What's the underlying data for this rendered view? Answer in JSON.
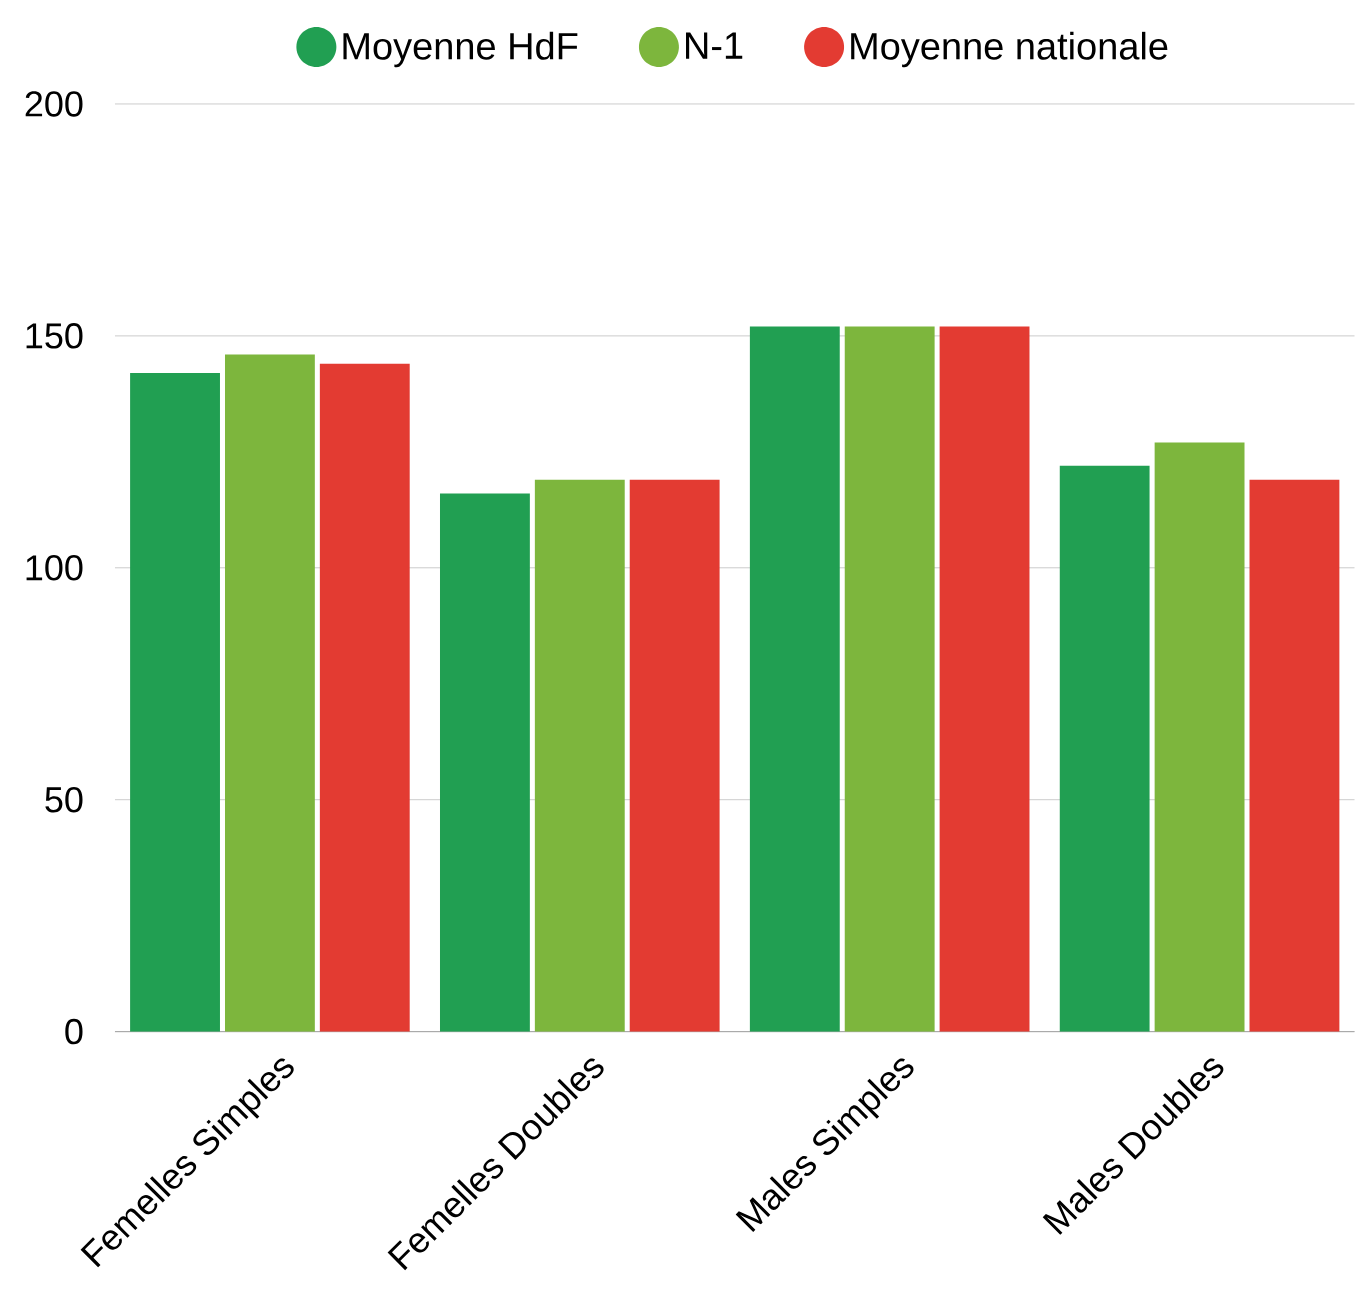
{
  "chart_data": {
    "type": "bar",
    "categories": [
      "Femelles Simples",
      "Femelles Doubles",
      "Males Simples",
      "Males Doubles"
    ],
    "series": [
      {
        "name": "Moyenne HdF",
        "color": "#219f52",
        "values": [
          142,
          116,
          152,
          122
        ]
      },
      {
        "name": "N-1",
        "color": "#7db63d",
        "values": [
          146,
          119,
          152,
          127
        ]
      },
      {
        "name": "Moyenne nationale",
        "color": "#e33b32",
        "values": [
          144,
          119,
          152,
          119
        ]
      }
    ],
    "ylim": [
      0,
      200
    ],
    "yticks": [
      0,
      50,
      100,
      150,
      200
    ],
    "grid": "y",
    "legend": "top"
  }
}
